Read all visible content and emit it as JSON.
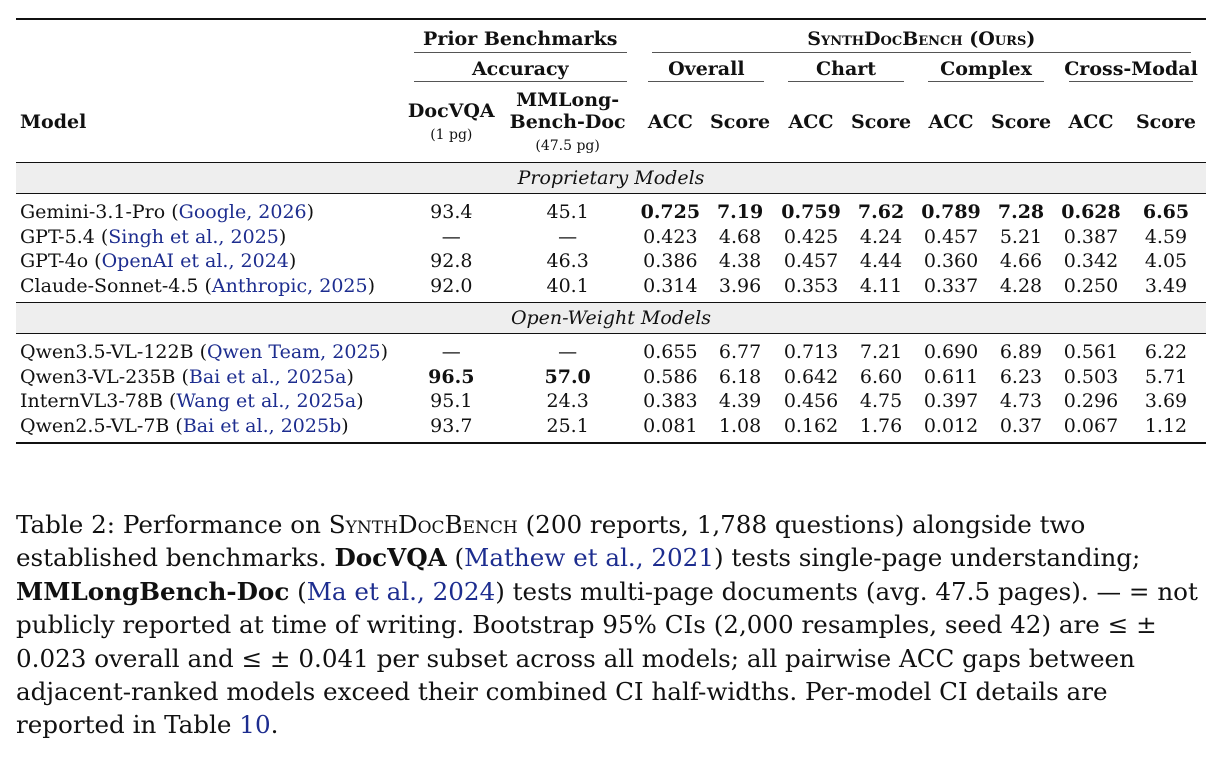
{
  "table": {
    "header": {
      "model": "Model",
      "prior_group": "Prior Benchmarks",
      "prior_sub": "Accuracy",
      "ours_group": "SynthDocBench (Ours)",
      "subsets": [
        "Overall",
        "Chart",
        "Complex",
        "Cross-Modal"
      ],
      "docvqa": "DocVQA",
      "docvqa_pages": "(1 pg)",
      "mmlong_line1": "MMLong-",
      "mmlong_line2": "Bench-Doc",
      "mmlong_pages": "(47.5 pg)",
      "acc": "ACC",
      "score": "Score"
    },
    "sections": [
      {
        "title": "Proprietary Models",
        "rows": [
          {
            "name": "Gemini-3.1-Pro",
            "cite": "Google",
            "year": "2026",
            "docvqa": "93.4",
            "mmlong": "45.1",
            "vals": [
              "0.725",
              "7.19",
              "0.759",
              "7.62",
              "0.789",
              "7.28",
              "0.628",
              "6.65"
            ]
          },
          {
            "name": "GPT-5.4",
            "cite": "Singh et al.",
            "year": "2025",
            "docvqa": "—",
            "mmlong": "—",
            "vals": [
              "0.423",
              "4.68",
              "0.425",
              "4.24",
              "0.457",
              "5.21",
              "0.387",
              "4.59"
            ]
          },
          {
            "name": "GPT-4o",
            "cite": "OpenAI et al.",
            "year": "2024",
            "docvqa": "92.8",
            "mmlong": "46.3",
            "vals": [
              "0.386",
              "4.38",
              "0.457",
              "4.44",
              "0.360",
              "4.66",
              "0.342",
              "4.05"
            ]
          },
          {
            "name": "Claude-Sonnet-4.5",
            "cite": "Anthropic",
            "year": "2025",
            "docvqa": "92.0",
            "mmlong": "40.1",
            "vals": [
              "0.314",
              "3.96",
              "0.353",
              "4.11",
              "0.337",
              "4.28",
              "0.250",
              "3.49"
            ]
          }
        ]
      },
      {
        "title": "Open-Weight Models",
        "rows": [
          {
            "name": "Qwen3.5-VL-122B",
            "cite": "Qwen Team",
            "year": "2025",
            "docvqa": "—",
            "mmlong": "—",
            "vals": [
              "0.655",
              "6.77",
              "0.713",
              "7.21",
              "0.690",
              "6.89",
              "0.561",
              "6.22"
            ]
          },
          {
            "name": "Qwen3-VL-235B",
            "cite": "Bai et al.",
            "year": "2025a",
            "docvqa": "96.5",
            "mmlong": "57.0",
            "vals": [
              "0.586",
              "6.18",
              "0.642",
              "6.60",
              "0.611",
              "6.23",
              "0.503",
              "5.71"
            ]
          },
          {
            "name": "InternVL3-78B",
            "cite": "Wang et al.",
            "year": "2025a",
            "docvqa": "95.1",
            "mmlong": "24.3",
            "vals": [
              "0.383",
              "4.39",
              "0.456",
              "4.75",
              "0.397",
              "4.73",
              "0.296",
              "3.69"
            ]
          },
          {
            "name": "Qwen2.5-VL-7B",
            "cite": "Bai et al.",
            "year": "2025b",
            "docvqa": "93.7",
            "mmlong": "25.1",
            "vals": [
              "0.081",
              "1.08",
              "0.162",
              "1.76",
              "0.012",
              "0.37",
              "0.067",
              "1.12"
            ]
          }
        ]
      }
    ]
  },
  "caption": {
    "label": "Table 2:",
    "t1": "Performance on",
    "bench": "SynthDocBench",
    "t2": "(200 reports, 1,788 questions) alongside two established benchmarks.",
    "docvqa": "DocVQA",
    "cite1": "Mathew et al.",
    "cite1_year": "2021",
    "t3": "tests single-page understanding;",
    "mmlong": "MMLongBench-Doc",
    "cite2": "Ma et al.",
    "cite2_year": "2024",
    "t4": "tests multi-page documents (avg. 47.5 pages). — = not publicly reported at time of writing. Bootstrap 95% CIs (2,000 resamples, seed 42) are ≤ ± 0.023 overall and ≤ ± 0.041 per subset across all models; all pairwise ACC gaps between adjacent-ranked models exceed their combined CI half-widths. Per-model CI details are reported in Table",
    "table_ref": "10",
    "end": "."
  }
}
